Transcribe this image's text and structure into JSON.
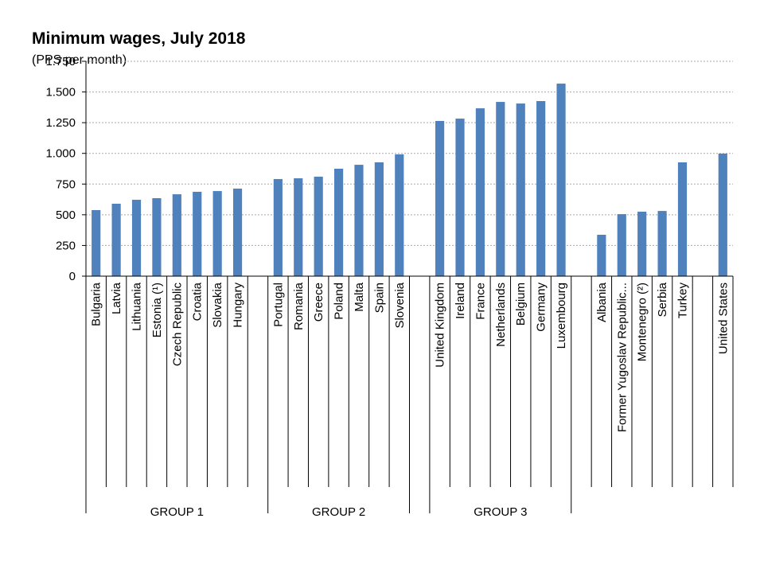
{
  "chart_data": {
    "type": "bar",
    "title": "Minimum wages, July 2018",
    "subtitle": "(PPS per month)",
    "categories": [
      "Bulgaria",
      "Latvia",
      "Lithuania",
      "Estonia (¹)",
      "Czech Republic",
      "Croatia",
      "Slovakia",
      "Hungary",
      null,
      "Portugal",
      "Romania",
      "Greece",
      "Poland",
      "Malta",
      "Spain",
      "Slovenia",
      null,
      "United Kingdom",
      "Ireland",
      "France",
      "Netherlands",
      "Belgium",
      "Germany",
      "Luxembourg",
      null,
      "Albania",
      "Former Yugoslav Republic...",
      "Montenegro (²)",
      "Serbia",
      "Turkey",
      null,
      "United States"
    ],
    "values": [
      538,
      590,
      622,
      635,
      667,
      687,
      693,
      713,
      null,
      791,
      797,
      810,
      875,
      907,
      927,
      992,
      null,
      1264,
      1283,
      1367,
      1419,
      1406,
      1426,
      1568,
      null,
      337,
      505,
      525,
      531,
      927,
      null,
      998
    ],
    "groups": [
      "GROUP 1",
      "GROUP 2",
      "GROUP 3"
    ],
    "color": "#4f81bd",
    "ylim": [
      0,
      1750
    ],
    "yticks": [
      0,
      250,
      500,
      750,
      {
        "value": 1000,
        "label": "1.000"
      },
      {
        "value": 1250,
        "label": "1.250"
      },
      {
        "value": 1500,
        "label": "1.500"
      },
      {
        "value": 1750,
        "label": "1.750"
      }
    ],
    "grid": true
  }
}
